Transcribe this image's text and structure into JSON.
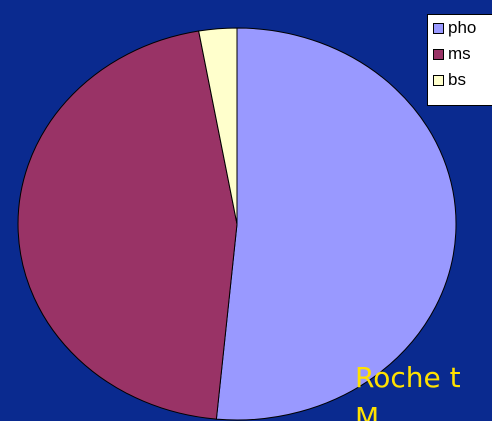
{
  "chart_data": {
    "type": "pie",
    "title": "",
    "slices": [
      {
        "label": "pho",
        "value": 51.5,
        "color": "#9999ff"
      },
      {
        "label": "ms",
        "value": 45.7,
        "color": "#993366"
      },
      {
        "label": "bs",
        "value": 2.8,
        "color": "#ffffcc"
      }
    ],
    "start_angle_deg": 0,
    "direction": "clockwise",
    "legend_position": "top-right"
  },
  "overlay_text": {
    "lines": [
      "Roche t",
      "M"
    ]
  },
  "colors": {
    "background": "#0a2a8f",
    "overlay_text": "#ffe100",
    "outline": "#000000"
  }
}
